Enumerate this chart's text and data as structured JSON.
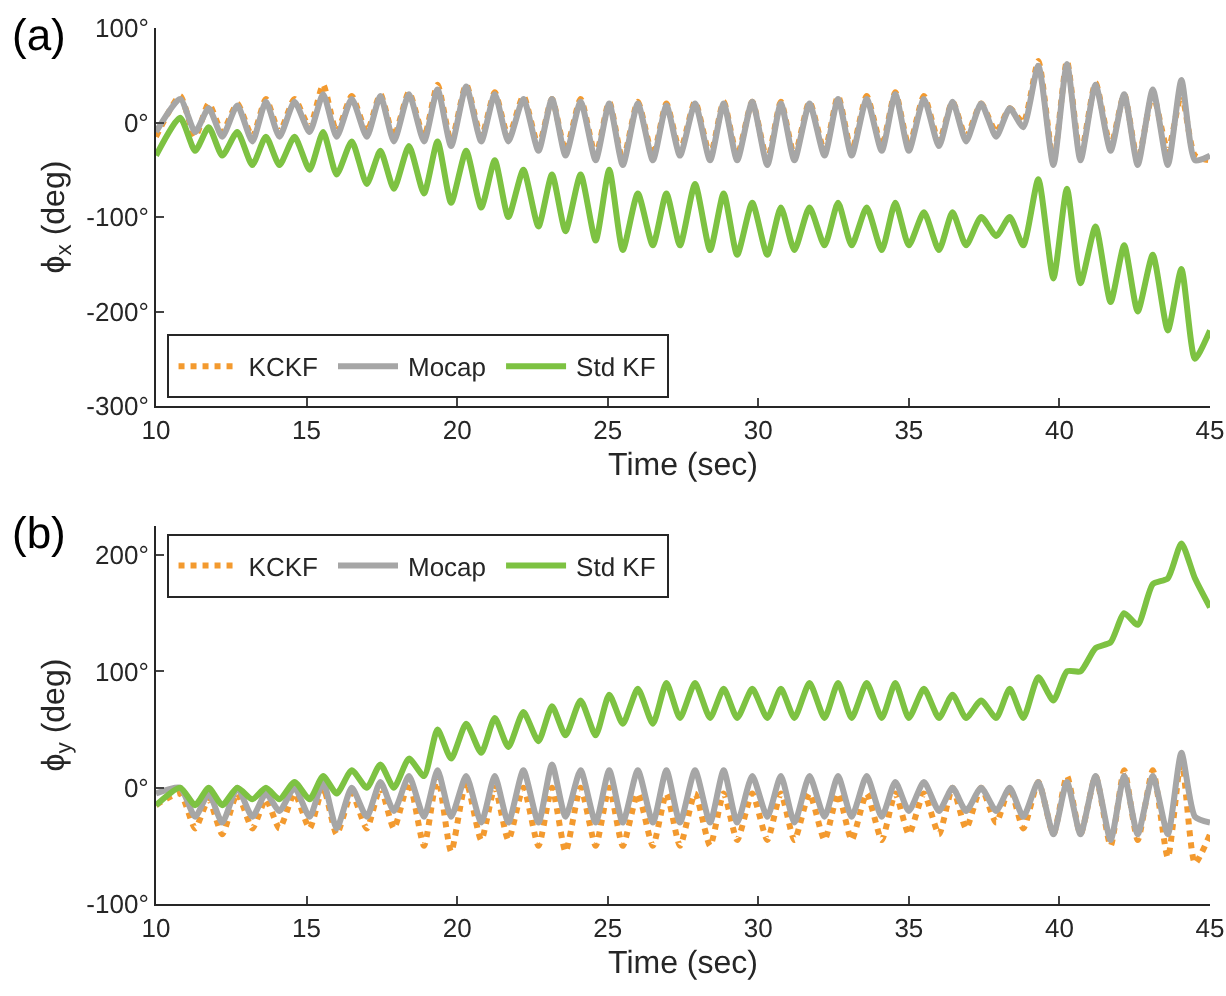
{
  "chart_data": [
    {
      "type": "line",
      "annotations": [
        "(a)"
      ],
      "xlabel": "Time (sec)",
      "ylabel": "ϕ$_{x}$ (deg)",
      "legend": "bottom left",
      "grid": false,
      "x": [
        10.0,
        10.8,
        11.3,
        11.75,
        12.2,
        12.7,
        13.2,
        13.65,
        14.1,
        14.6,
        15.1,
        15.55,
        16.0,
        16.5,
        17.0,
        17.45,
        17.9,
        18.4,
        18.9,
        19.35,
        19.8,
        20.3,
        20.8,
        21.25,
        21.7,
        22.2,
        22.7,
        23.15,
        23.6,
        24.1,
        24.6,
        25.05,
        25.5,
        26.0,
        26.5,
        26.95,
        27.4,
        27.9,
        28.4,
        28.85,
        29.3,
        29.8,
        30.3,
        30.75,
        31.2,
        31.7,
        32.2,
        32.65,
        33.1,
        33.6,
        34.1,
        34.55,
        35.0,
        35.5,
        36.0,
        36.45,
        36.9,
        37.4,
        37.9,
        38.35,
        38.8,
        39.3,
        39.8,
        40.25,
        40.7,
        41.2,
        41.7,
        42.15,
        42.6,
        43.1,
        43.6,
        44.05,
        44.5,
        45.0
      ],
      "xlim": [
        10,
        45
      ],
      "xticks": [
        10,
        15,
        20,
        25,
        30,
        35,
        40,
        45
      ],
      "ylim": [
        -300,
        100
      ],
      "yticks": [
        {
          "value": -300,
          "label": "-300°"
        },
        {
          "value": -200,
          "label": "-200°"
        },
        {
          "value": -100,
          "label": "-100°"
        },
        {
          "value": 0,
          "label": "0°"
        },
        {
          "value": 100,
          "label": "100°"
        }
      ],
      "series": [
        {
          "name": "KCKF",
          "color": "#f39a2f",
          "line_style": "dotted",
          "values": [
            -15,
            28,
            -15,
            20,
            -10,
            20,
            -15,
            25,
            -10,
            25,
            -5,
            40,
            -10,
            28,
            -10,
            30,
            -15,
            32,
            -15,
            40,
            -20,
            40,
            -15,
            32,
            -15,
            28,
            -25,
            25,
            -30,
            25,
            -35,
            22,
            -40,
            22,
            -35,
            20,
            -30,
            22,
            -35,
            22,
            -35,
            22,
            -40,
            22,
            -35,
            22,
            -30,
            28,
            -30,
            28,
            -25,
            32,
            -25,
            28,
            -20,
            22,
            -15,
            20,
            -10,
            15,
            0,
            65,
            -40,
            65,
            -35,
            42,
            -25,
            30,
            -40,
            30,
            -30,
            30,
            -35,
            -40
          ]
        },
        {
          "name": "Mocap",
          "color": "#a6a6a6",
          "line_style": "solid",
          "values": [
            -10,
            25,
            -10,
            15,
            -15,
            18,
            -20,
            22,
            -15,
            22,
            -10,
            30,
            -15,
            25,
            -15,
            28,
            -20,
            30,
            -20,
            35,
            -25,
            38,
            -20,
            30,
            -20,
            25,
            -30,
            25,
            -35,
            22,
            -40,
            20,
            -45,
            20,
            -40,
            18,
            -35,
            20,
            -40,
            20,
            -40,
            22,
            -45,
            20,
            -40,
            20,
            -35,
            25,
            -35,
            25,
            -30,
            30,
            -30,
            25,
            -25,
            22,
            -20,
            20,
            -15,
            15,
            -5,
            60,
            -45,
            62,
            -40,
            40,
            -30,
            30,
            -45,
            35,
            -45,
            45,
            -40,
            -35
          ]
        },
        {
          "name": "Std KF",
          "color": "#7dc242",
          "line_style": "solid",
          "values": [
            -35,
            5,
            -30,
            -5,
            -35,
            -10,
            -45,
            -15,
            -45,
            -15,
            -50,
            -10,
            -55,
            -20,
            -65,
            -30,
            -70,
            -25,
            -75,
            -20,
            -85,
            -30,
            -90,
            -40,
            -100,
            -50,
            -110,
            -55,
            -115,
            -55,
            -125,
            -50,
            -135,
            -75,
            -130,
            -75,
            -130,
            -65,
            -135,
            -75,
            -140,
            -85,
            -140,
            -90,
            -135,
            -90,
            -130,
            -85,
            -130,
            -90,
            -135,
            -85,
            -130,
            -95,
            -135,
            -95,
            -130,
            -100,
            -120,
            -100,
            -130,
            -60,
            -165,
            -70,
            -170,
            -110,
            -190,
            -130,
            -200,
            -140,
            -220,
            -155,
            -250,
            -220
          ]
        }
      ]
    },
    {
      "type": "line",
      "annotations": [
        "(b)"
      ],
      "xlabel": "Time (sec)",
      "ylabel": "ϕ$_{y}$ (deg)",
      "legend": "top left",
      "grid": false,
      "x": [
        10.0,
        10.8,
        11.3,
        11.75,
        12.2,
        12.7,
        13.2,
        13.65,
        14.1,
        14.6,
        15.1,
        15.55,
        16.0,
        16.5,
        17.0,
        17.45,
        17.9,
        18.4,
        18.9,
        19.35,
        19.8,
        20.3,
        20.8,
        21.25,
        21.7,
        22.2,
        22.7,
        23.15,
        23.6,
        24.1,
        24.6,
        25.05,
        25.5,
        26.0,
        26.5,
        26.95,
        27.4,
        27.9,
        28.4,
        28.85,
        29.3,
        29.8,
        30.3,
        30.75,
        31.2,
        31.7,
        32.2,
        32.65,
        33.1,
        33.6,
        34.1,
        34.55,
        35.0,
        35.5,
        36.0,
        36.45,
        36.9,
        37.4,
        37.9,
        38.35,
        38.8,
        39.3,
        39.8,
        40.25,
        40.7,
        41.2,
        41.7,
        42.15,
        42.6,
        43.1,
        43.6,
        44.05,
        44.5,
        45.0
      ],
      "xlim": [
        10,
        45
      ],
      "xticks": [
        10,
        15,
        20,
        25,
        30,
        35,
        40,
        45
      ],
      "ylim": [
        -100,
        225
      ],
      "yticks": [
        {
          "value": -100,
          "label": "-100°"
        },
        {
          "value": 0,
          "label": "0°"
        },
        {
          "value": 100,
          "label": "100°"
        },
        {
          "value": 200,
          "label": "200°"
        }
      ],
      "series": [
        {
          "name": "KCKF",
          "color": "#f39a2f",
          "line_style": "dotted",
          "values": [
            -15,
            -5,
            -35,
            -10,
            -40,
            -5,
            -35,
            -10,
            -35,
            -5,
            -35,
            0,
            -40,
            -5,
            -35,
            0,
            -35,
            5,
            -50,
            10,
            -55,
            5,
            -45,
            0,
            -45,
            0,
            -50,
            0,
            -55,
            0,
            -50,
            0,
            -50,
            -5,
            -50,
            -5,
            -50,
            -5,
            -50,
            -5,
            -45,
            -5,
            -45,
            -5,
            -45,
            -5,
            -45,
            -5,
            -45,
            -5,
            -45,
            -5,
            -40,
            -5,
            -40,
            0,
            -35,
            0,
            -30,
            0,
            -35,
            5,
            -40,
            10,
            -40,
            10,
            -50,
            15,
            -45,
            15,
            -60,
            25,
            -65,
            -40
          ]
        },
        {
          "name": "Mocap",
          "color": "#a6a6a6",
          "line_style": "solid",
          "values": [
            -5,
            0,
            -25,
            -5,
            -30,
            0,
            -25,
            -5,
            -20,
            0,
            -25,
            5,
            -35,
            0,
            -25,
            5,
            -20,
            10,
            -25,
            15,
            -25,
            10,
            -30,
            10,
            -30,
            15,
            -30,
            20,
            -25,
            15,
            -30,
            15,
            -30,
            15,
            -30,
            15,
            -30,
            15,
            -30,
            15,
            -30,
            10,
            -25,
            10,
            -30,
            10,
            -25,
            10,
            -25,
            10,
            -25,
            5,
            -20,
            5,
            -20,
            0,
            -20,
            0,
            -20,
            0,
            -25,
            5,
            -40,
            5,
            -40,
            10,
            -45,
            10,
            -40,
            10,
            -40,
            30,
            -25,
            -30
          ]
        },
        {
          "name": "Std KF",
          "color": "#7dc242",
          "line_style": "solid",
          "values": [
            -15,
            0,
            -15,
            0,
            -15,
            0,
            -10,
            0,
            -10,
            5,
            -10,
            10,
            -5,
            15,
            0,
            20,
            0,
            25,
            10,
            50,
            25,
            55,
            30,
            60,
            35,
            65,
            40,
            70,
            45,
            75,
            45,
            80,
            55,
            85,
            55,
            90,
            60,
            90,
            60,
            85,
            60,
            85,
            60,
            85,
            60,
            90,
            60,
            90,
            60,
            90,
            60,
            90,
            60,
            85,
            60,
            80,
            60,
            75,
            60,
            85,
            60,
            95,
            75,
            100,
            100,
            120,
            125,
            150,
            140,
            175,
            180,
            210,
            180,
            155
          ]
        }
      ]
    }
  ]
}
